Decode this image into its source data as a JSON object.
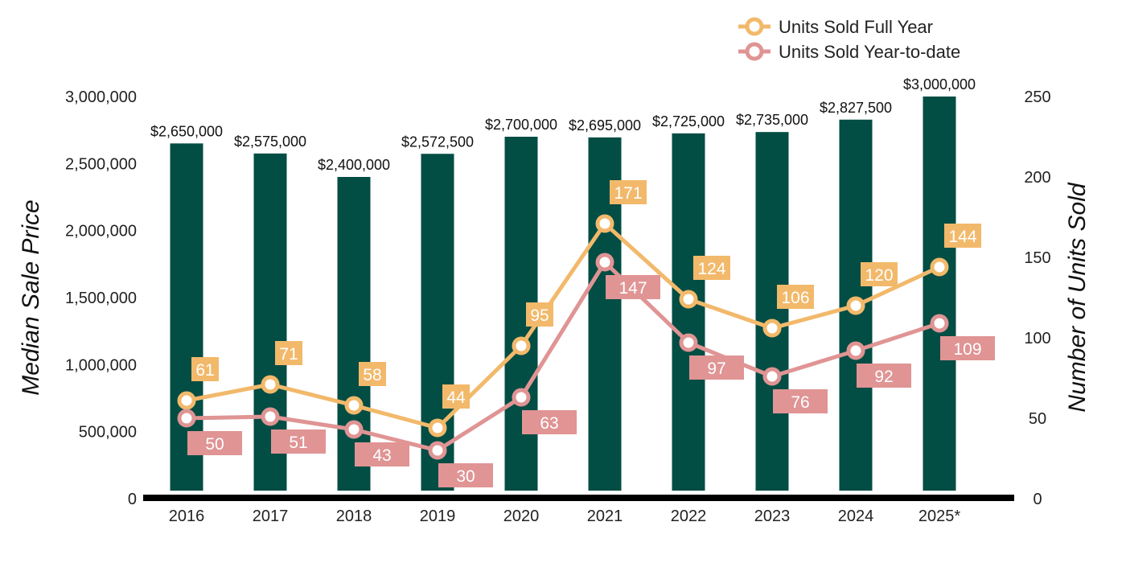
{
  "chart_data": {
    "type": "bar",
    "categories": [
      "2016",
      "2017",
      "2018",
      "2019",
      "2020",
      "2021",
      "2022",
      "2023",
      "2024",
      "2025*"
    ],
    "bar_series": {
      "name": "Median Sale Price",
      "values": [
        2650000,
        2575000,
        2400000,
        2572500,
        2700000,
        2695000,
        2725000,
        2735000,
        2827500,
        3000000
      ],
      "labels": [
        "$2,650,000",
        "$2,575,000",
        "$2,400,000",
        "$2,572,500",
        "$2,700,000",
        "$2,695,000",
        "$2,725,000",
        "$2,735,000",
        "$2,827,500",
        "$3,000,000"
      ],
      "color": "#024d44"
    },
    "line_series": [
      {
        "name": "Units Sold Full Year",
        "values": [
          61,
          71,
          58,
          44,
          95,
          171,
          124,
          106,
          120,
          144
        ],
        "color": "#f2b96b",
        "label_position": "above-right"
      },
      {
        "name": "Units Sold Year-to-date",
        "values": [
          50,
          51,
          43,
          30,
          63,
          147,
          97,
          76,
          92,
          109
        ],
        "color": "#e09494",
        "label_position": "below-right"
      }
    ],
    "y_left": {
      "label": "Median Sale Price",
      "range": [
        0,
        3000000
      ],
      "ticks": [
        0,
        500000,
        1000000,
        1500000,
        2000000,
        2500000,
        3000000
      ],
      "tick_labels": [
        "0",
        "500,000",
        "1,000,000",
        "1,500,000",
        "2,000,000",
        "2,500,000",
        "3,000,000"
      ]
    },
    "y_right": {
      "label": "Number of Units Sold",
      "range": [
        0,
        250
      ],
      "ticks": [
        0,
        50,
        100,
        150,
        200,
        250
      ],
      "tick_labels": [
        "0",
        "50",
        "100",
        "150",
        "200",
        "250"
      ]
    },
    "grid": false,
    "legend": "top-right"
  }
}
